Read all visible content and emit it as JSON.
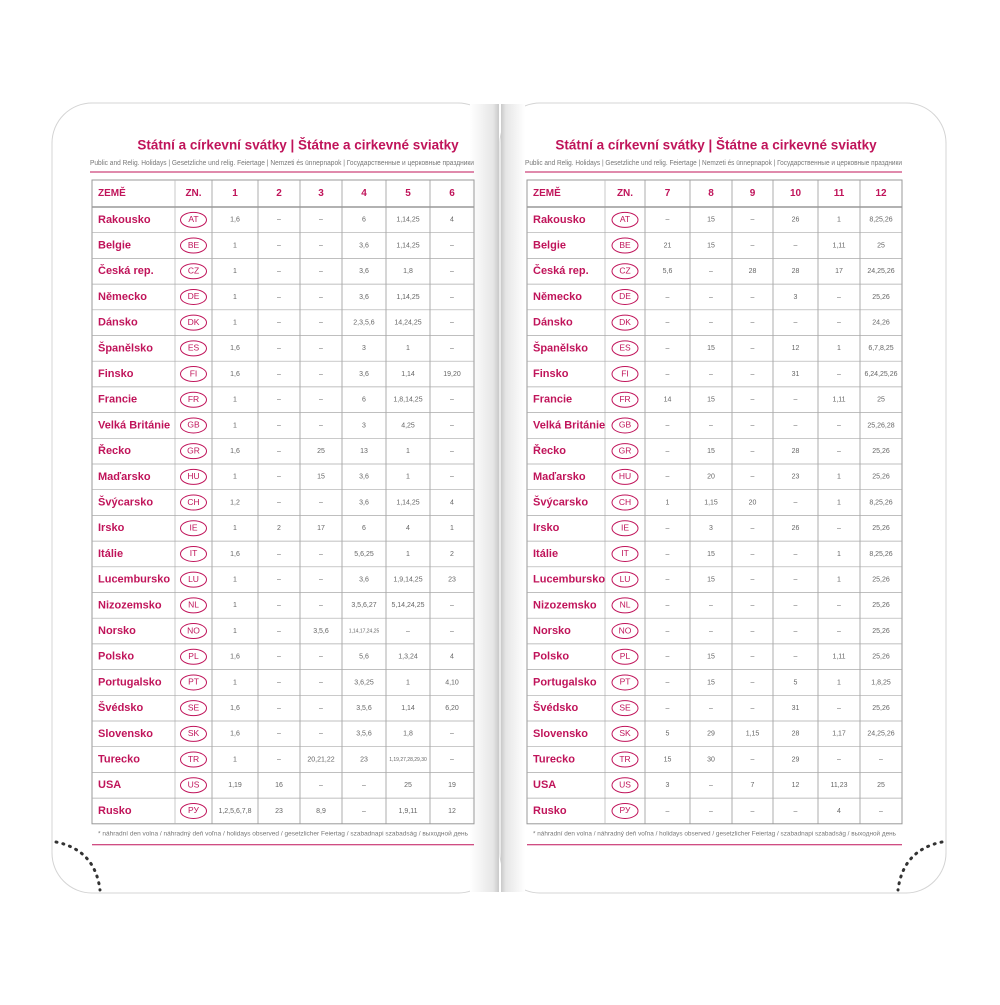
{
  "pages": [
    {
      "title": "Státní a církevní svátky | Štátne a cirkevné sviatky",
      "subtitle": "Public and Relig. Holidays | Gesetzliche und relig. Feiertage | Nemzeti és ünnepnapok | Государственные и церковные праздники",
      "header": [
        "ZEMĚ",
        "ZN.",
        "1",
        "2",
        "3",
        "4",
        "5",
        "6"
      ],
      "rows": [
        [
          "Rakousko",
          "AT",
          "1,6",
          "–",
          "–",
          "6",
          "1,14,25",
          "4"
        ],
        [
          "Belgie",
          "BE",
          "1",
          "–",
          "–",
          "3,6",
          "1,14,25",
          "–"
        ],
        [
          "Česká rep.",
          "CZ",
          "1",
          "–",
          "–",
          "3,6",
          "1,8",
          "–"
        ],
        [
          "Německo",
          "DE",
          "1",
          "–",
          "–",
          "3,6",
          "1,14,25",
          "–"
        ],
        [
          "Dánsko",
          "DK",
          "1",
          "–",
          "–",
          "2,3,5,6",
          "14,24,25",
          "–"
        ],
        [
          "Španělsko",
          "ES",
          "1,6",
          "–",
          "–",
          "3",
          "1",
          "–"
        ],
        [
          "Finsko",
          "FI",
          "1,6",
          "–",
          "–",
          "3,6",
          "1,14",
          "19,20"
        ],
        [
          "Francie",
          "FR",
          "1",
          "–",
          "–",
          "6",
          "1,8,14,25",
          "–"
        ],
        [
          "Velká Británie",
          "GB",
          "1",
          "–",
          "–",
          "3",
          "4,25",
          "–"
        ],
        [
          "Řecko",
          "GR",
          "1,6",
          "–",
          "25",
          "13",
          "1",
          "–"
        ],
        [
          "Maďarsko",
          "HU",
          "1",
          "–",
          "15",
          "3,6",
          "1",
          "–"
        ],
        [
          "Švýcarsko",
          "CH",
          "1,2",
          "–",
          "–",
          "3,6",
          "1,14,25",
          "4"
        ],
        [
          "Irsko",
          "IE",
          "1",
          "2",
          "17",
          "6",
          "4",
          "1"
        ],
        [
          "Itálie",
          "IT",
          "1,6",
          "–",
          "–",
          "5,6,25",
          "1",
          "2"
        ],
        [
          "Lucembursko",
          "LU",
          "1",
          "–",
          "–",
          "3,6",
          "1,9,14,25",
          "23"
        ],
        [
          "Nizozemsko",
          "NL",
          "1",
          "–",
          "–",
          "3,5,6,27",
          "5,14,24,25",
          "–"
        ],
        [
          "Norsko",
          "NO",
          "1",
          "–",
          "3,5,6",
          "1,14,17,24,25",
          "–",
          "–"
        ],
        [
          "Polsko",
          "PL",
          "1,6",
          "–",
          "–",
          "5,6",
          "1,3,24",
          "4"
        ],
        [
          "Portugalsko",
          "PT",
          "1",
          "–",
          "–",
          "3,6,25",
          "1",
          "4,10"
        ],
        [
          "Švédsko",
          "SE",
          "1,6",
          "–",
          "–",
          "3,5,6",
          "1,14",
          "6,20"
        ],
        [
          "Slovensko",
          "SK",
          "1,6",
          "–",
          "–",
          "3,5,6",
          "1,8",
          "–"
        ],
        [
          "Turecko",
          "TR",
          "1",
          "–",
          "20,21,22",
          "23",
          "1,19,27,28,29,30",
          "–"
        ],
        [
          "USA",
          "US",
          "1,19",
          "16",
          "–",
          "–",
          "25",
          "19"
        ],
        [
          "Rusko",
          "РУ",
          "1,2,5,6,7,8",
          "23",
          "8,9",
          "–",
          "1,9,11",
          "12"
        ]
      ],
      "footnote": "* náhradní den volna / náhradný deň voľna / holidays observed / gesetzlicher Feiertag / szabadnapi szabadság / выходной день"
    },
    {
      "title": "Státní a církevní svátky | Štátne a cirkevné sviatky",
      "subtitle": "Public and Relig. Holidays | Gesetzliche und relig. Feiertage | Nemzeti és ünnepnapok | Государственные и церковные праздники",
      "header": [
        "ZEMĚ",
        "ZN.",
        "7",
        "8",
        "9",
        "10",
        "11",
        "12"
      ],
      "rows": [
        [
          "Rakousko",
          "AT",
          "–",
          "15",
          "–",
          "26",
          "1",
          "8,25,26"
        ],
        [
          "Belgie",
          "BE",
          "21",
          "15",
          "–",
          "–",
          "1,11",
          "25"
        ],
        [
          "Česká rep.",
          "CZ",
          "5,6",
          "–",
          "28",
          "28",
          "17",
          "24,25,26"
        ],
        [
          "Německo",
          "DE",
          "–",
          "–",
          "–",
          "3",
          "–",
          "25,26"
        ],
        [
          "Dánsko",
          "DK",
          "–",
          "–",
          "–",
          "–",
          "–",
          "24,26"
        ],
        [
          "Španělsko",
          "ES",
          "–",
          "15",
          "–",
          "12",
          "1",
          "6,7,8,25"
        ],
        [
          "Finsko",
          "FI",
          "–",
          "–",
          "–",
          "31",
          "–",
          "6,24,25,26"
        ],
        [
          "Francie",
          "FR",
          "14",
          "15",
          "–",
          "–",
          "1,11",
          "25"
        ],
        [
          "Velká Británie",
          "GB",
          "–",
          "–",
          "–",
          "–",
          "–",
          "25,26,28"
        ],
        [
          "Řecko",
          "GR",
          "–",
          "15",
          "–",
          "28",
          "–",
          "25,26"
        ],
        [
          "Maďarsko",
          "HU",
          "–",
          "20",
          "–",
          "23",
          "1",
          "25,26"
        ],
        [
          "Švýcarsko",
          "CH",
          "1",
          "1,15",
          "20",
          "–",
          "1",
          "8,25,26"
        ],
        [
          "Irsko",
          "IE",
          "–",
          "3",
          "–",
          "26",
          "–",
          "25,26"
        ],
        [
          "Itálie",
          "IT",
          "–",
          "15",
          "–",
          "–",
          "1",
          "8,25,26"
        ],
        [
          "Lucembursko",
          "LU",
          "–",
          "15",
          "–",
          "–",
          "1",
          "25,26"
        ],
        [
          "Nizozemsko",
          "NL",
          "–",
          "–",
          "–",
          "–",
          "–",
          "25,26"
        ],
        [
          "Norsko",
          "NO",
          "–",
          "–",
          "–",
          "–",
          "–",
          "25,26"
        ],
        [
          "Polsko",
          "PL",
          "–",
          "15",
          "–",
          "–",
          "1,11",
          "25,26"
        ],
        [
          "Portugalsko",
          "PT",
          "–",
          "15",
          "–",
          "5",
          "1",
          "1,8,25"
        ],
        [
          "Švédsko",
          "SE",
          "–",
          "–",
          "–",
          "31",
          "–",
          "25,26"
        ],
        [
          "Slovensko",
          "SK",
          "5",
          "29",
          "1,15",
          "28",
          "1,17",
          "24,25,26"
        ],
        [
          "Turecko",
          "TR",
          "15",
          "30",
          "–",
          "29",
          "–",
          "–"
        ],
        [
          "USA",
          "US",
          "3",
          "–",
          "7",
          "12",
          "11,23",
          "25"
        ],
        [
          "Rusko",
          "РУ",
          "–",
          "–",
          "–",
          "–",
          "4",
          "–"
        ]
      ],
      "footnote": "* náhradní den volna / náhradný deň voľna / holidays observed / gesetzlicher Feiertag / szabadnapi szabadság / выходной день"
    }
  ]
}
